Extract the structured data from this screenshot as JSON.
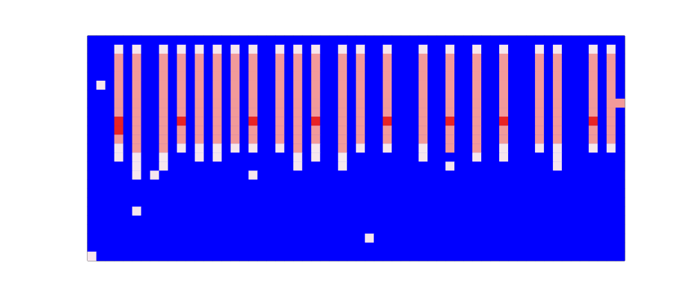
{
  "chart_data": {
    "type": "heatmap",
    "tick_labels": false,
    "grid": false,
    "zlim": [
      0,
      3
    ],
    "z": [
      [
        0,
        0,
        0,
        0,
        0,
        0,
        0,
        0,
        0,
        0,
        0,
        0,
        0,
        0,
        0,
        0,
        0,
        0,
        0,
        0,
        0,
        0,
        0,
        0,
        0,
        0,
        0,
        0,
        0,
        0,
        0,
        0,
        0,
        0,
        0,
        0,
        0,
        0,
        0,
        0,
        0,
        0,
        0,
        0,
        0,
        0,
        0,
        0,
        0,
        0,
        0,
        0,
        0,
        0,
        0,
        0,
        0,
        0,
        0,
        0
      ],
      [
        0,
        0,
        0,
        1,
        0,
        1,
        0,
        0,
        1,
        0,
        1,
        0,
        1,
        0,
        1,
        0,
        1,
        0,
        1,
        0,
        0,
        1,
        0,
        1,
        0,
        1,
        0,
        0,
        1,
        0,
        1,
        0,
        0,
        1,
        0,
        0,
        0,
        1,
        0,
        0,
        1,
        0,
        0,
        1,
        0,
        0,
        1,
        0,
        0,
        0,
        1,
        0,
        1,
        0,
        0,
        0,
        1,
        0,
        1,
        0
      ],
      [
        0,
        0,
        0,
        2,
        0,
        2,
        0,
        0,
        2,
        0,
        2,
        0,
        2,
        0,
        2,
        0,
        2,
        0,
        2,
        0,
        0,
        2,
        0,
        2,
        0,
        2,
        0,
        0,
        2,
        0,
        2,
        0,
        0,
        2,
        0,
        0,
        0,
        2,
        0,
        0,
        2,
        0,
        0,
        2,
        0,
        0,
        2,
        0,
        0,
        0,
        2,
        0,
        2,
        0,
        0,
        0,
        2,
        0,
        2,
        0
      ],
      [
        0,
        0,
        0,
        2,
        0,
        2,
        0,
        0,
        2,
        0,
        2,
        0,
        2,
        0,
        2,
        0,
        2,
        0,
        2,
        0,
        0,
        2,
        0,
        2,
        0,
        2,
        0,
        0,
        2,
        0,
        2,
        0,
        0,
        2,
        0,
        0,
        0,
        2,
        0,
        0,
        2,
        0,
        0,
        2,
        0,
        0,
        2,
        0,
        0,
        0,
        2,
        0,
        2,
        0,
        0,
        0,
        2,
        0,
        2,
        0
      ],
      [
        0,
        0,
        0,
        2,
        0,
        2,
        0,
        0,
        2,
        0,
        2,
        0,
        2,
        0,
        2,
        0,
        2,
        0,
        2,
        0,
        0,
        2,
        0,
        2,
        0,
        2,
        0,
        0,
        2,
        0,
        2,
        0,
        0,
        2,
        0,
        0,
        0,
        2,
        0,
        0,
        2,
        0,
        0,
        2,
        0,
        0,
        2,
        0,
        0,
        0,
        2,
        0,
        2,
        0,
        0,
        0,
        2,
        0,
        2,
        0
      ],
      [
        0,
        1,
        0,
        2,
        0,
        2,
        0,
        0,
        2,
        0,
        2,
        0,
        2,
        0,
        2,
        0,
        2,
        0,
        2,
        0,
        0,
        2,
        0,
        2,
        0,
        2,
        0,
        0,
        2,
        0,
        2,
        0,
        0,
        2,
        0,
        0,
        0,
        2,
        0,
        0,
        2,
        0,
        0,
        2,
        0,
        0,
        2,
        0,
        0,
        0,
        2,
        0,
        2,
        0,
        0,
        0,
        2,
        0,
        2,
        0
      ],
      [
        0,
        0,
        0,
        2,
        0,
        2,
        0,
        0,
        2,
        0,
        2,
        0,
        2,
        0,
        2,
        0,
        2,
        0,
        2,
        0,
        0,
        2,
        0,
        2,
        0,
        2,
        0,
        0,
        2,
        0,
        2,
        0,
        0,
        2,
        0,
        0,
        0,
        2,
        0,
        0,
        2,
        0,
        0,
        2,
        0,
        0,
        2,
        0,
        0,
        0,
        2,
        0,
        2,
        0,
        0,
        0,
        2,
        0,
        2,
        0
      ],
      [
        0,
        0,
        0,
        2,
        0,
        2,
        0,
        0,
        2,
        0,
        2,
        0,
        2,
        0,
        2,
        0,
        2,
        0,
        2,
        0,
        0,
        2,
        0,
        2,
        0,
        2,
        0,
        0,
        2,
        0,
        2,
        0,
        0,
        2,
        0,
        0,
        0,
        2,
        0,
        0,
        2,
        0,
        0,
        2,
        0,
        0,
        2,
        0,
        0,
        0,
        2,
        0,
        2,
        0,
        0,
        0,
        2,
        0,
        2,
        2
      ],
      [
        0,
        0,
        0,
        2,
        0,
        2,
        0,
        0,
        2,
        0,
        2,
        0,
        2,
        0,
        2,
        0,
        2,
        0,
        2,
        0,
        0,
        2,
        0,
        2,
        0,
        2,
        0,
        0,
        2,
        0,
        2,
        0,
        0,
        2,
        0,
        0,
        0,
        2,
        0,
        0,
        2,
        0,
        0,
        2,
        0,
        0,
        2,
        0,
        0,
        0,
        2,
        0,
        2,
        0,
        0,
        0,
        2,
        0,
        2,
        0
      ],
      [
        0,
        0,
        0,
        3,
        0,
        2,
        0,
        0,
        2,
        0,
        3,
        0,
        2,
        0,
        2,
        0,
        2,
        0,
        3,
        0,
        0,
        2,
        0,
        2,
        0,
        3,
        0,
        0,
        2,
        0,
        2,
        0,
        0,
        3,
        0,
        0,
        0,
        2,
        0,
        0,
        3,
        0,
        0,
        2,
        0,
        0,
        3,
        0,
        0,
        0,
        2,
        0,
        2,
        0,
        0,
        0,
        3,
        0,
        2,
        0
      ],
      [
        0,
        0,
        0,
        3,
        0,
        2,
        0,
        0,
        2,
        0,
        2,
        0,
        2,
        0,
        2,
        0,
        2,
        0,
        2,
        0,
        0,
        2,
        0,
        2,
        0,
        2,
        0,
        0,
        2,
        0,
        2,
        0,
        0,
        2,
        0,
        0,
        0,
        2,
        0,
        0,
        2,
        0,
        0,
        2,
        0,
        0,
        2,
        0,
        0,
        0,
        2,
        0,
        2,
        0,
        0,
        0,
        2,
        0,
        2,
        0
      ],
      [
        0,
        0,
        0,
        2,
        0,
        2,
        0,
        0,
        2,
        0,
        2,
        0,
        2,
        0,
        2,
        0,
        2,
        0,
        2,
        0,
        0,
        2,
        0,
        2,
        0,
        2,
        0,
        0,
        2,
        0,
        2,
        0,
        0,
        2,
        0,
        0,
        0,
        2,
        0,
        0,
        2,
        0,
        0,
        2,
        0,
        0,
        2,
        0,
        0,
        0,
        2,
        0,
        2,
        0,
        0,
        0,
        2,
        0,
        2,
        0
      ],
      [
        0,
        0,
        0,
        1,
        0,
        2,
        0,
        0,
        2,
        0,
        1,
        0,
        1,
        0,
        1,
        0,
        1,
        0,
        1,
        0,
        0,
        1,
        0,
        2,
        0,
        1,
        0,
        0,
        2,
        0,
        1,
        0,
        0,
        1,
        0,
        0,
        0,
        1,
        0,
        0,
        2,
        0,
        0,
        2,
        0,
        0,
        1,
        0,
        0,
        0,
        1,
        0,
        1,
        0,
        0,
        0,
        1,
        0,
        1,
        0
      ],
      [
        0,
        0,
        0,
        1,
        0,
        1,
        0,
        0,
        1,
        0,
        0,
        0,
        1,
        0,
        1,
        0,
        0,
        0,
        0,
        0,
        0,
        0,
        0,
        1,
        0,
        1,
        0,
        0,
        1,
        0,
        0,
        0,
        0,
        0,
        0,
        0,
        0,
        1,
        0,
        0,
        0,
        0,
        0,
        1,
        0,
        0,
        1,
        0,
        0,
        0,
        0,
        0,
        1,
        0,
        0,
        0,
        0,
        0,
        0,
        0
      ],
      [
        0,
        0,
        0,
        0,
        0,
        1,
        0,
        0,
        1,
        0,
        0,
        0,
        0,
        0,
        0,
        0,
        0,
        0,
        0,
        0,
        0,
        0,
        0,
        1,
        0,
        0,
        0,
        0,
        1,
        0,
        0,
        0,
        0,
        0,
        0,
        0,
        0,
        0,
        0,
        0,
        1,
        0,
        0,
        0,
        0,
        0,
        0,
        0,
        0,
        0,
        0,
        0,
        1,
        0,
        0,
        0,
        0,
        0,
        0,
        0
      ],
      [
        0,
        0,
        0,
        0,
        0,
        1,
        0,
        1,
        0,
        0,
        0,
        0,
        0,
        0,
        0,
        0,
        0,
        0,
        1,
        0,
        0,
        0,
        0,
        0,
        0,
        0,
        0,
        0,
        0,
        0,
        0,
        0,
        0,
        0,
        0,
        0,
        0,
        0,
        0,
        0,
        0,
        0,
        0,
        0,
        0,
        0,
        0,
        0,
        0,
        0,
        0,
        0,
        0,
        0,
        0,
        0,
        0,
        0,
        0,
        0
      ],
      [
        0,
        0,
        0,
        0,
        0,
        0,
        0,
        0,
        0,
        0,
        0,
        0,
        0,
        0,
        0,
        0,
        0,
        0,
        0,
        0,
        0,
        0,
        0,
        0,
        0,
        0,
        0,
        0,
        0,
        0,
        0,
        0,
        0,
        0,
        0,
        0,
        0,
        0,
        0,
        0,
        0,
        0,
        0,
        0,
        0,
        0,
        0,
        0,
        0,
        0,
        0,
        0,
        0,
        0,
        0,
        0,
        0,
        0,
        0,
        0
      ],
      [
        0,
        0,
        0,
        0,
        0,
        0,
        0,
        0,
        0,
        0,
        0,
        0,
        0,
        0,
        0,
        0,
        0,
        0,
        0,
        0,
        0,
        0,
        0,
        0,
        0,
        0,
        0,
        0,
        0,
        0,
        0,
        0,
        0,
        0,
        0,
        0,
        0,
        0,
        0,
        0,
        0,
        0,
        0,
        0,
        0,
        0,
        0,
        0,
        0,
        0,
        0,
        0,
        0,
        0,
        0,
        0,
        0,
        0,
        0,
        0
      ],
      [
        0,
        0,
        0,
        0,
        0,
        0,
        0,
        0,
        0,
        0,
        0,
        0,
        0,
        0,
        0,
        0,
        0,
        0,
        0,
        0,
        0,
        0,
        0,
        0,
        0,
        0,
        0,
        0,
        0,
        0,
        0,
        0,
        0,
        0,
        0,
        0,
        0,
        0,
        0,
        0,
        0,
        0,
        0,
        0,
        0,
        0,
        0,
        0,
        0,
        0,
        0,
        0,
        0,
        0,
        0,
        0,
        0,
        0,
        0,
        0
      ],
      [
        0,
        0,
        0,
        0,
        0,
        1,
        0,
        0,
        0,
        0,
        0,
        0,
        0,
        0,
        0,
        0,
        0,
        0,
        0,
        0,
        0,
        0,
        0,
        0,
        0,
        0,
        0,
        0,
        0,
        0,
        0,
        0,
        0,
        0,
        0,
        0,
        0,
        0,
        0,
        0,
        0,
        0,
        0,
        0,
        0,
        0,
        0,
        0,
        0,
        0,
        0,
        0,
        0,
        0,
        0,
        0,
        0,
        0,
        0,
        0
      ],
      [
        0,
        0,
        0,
        0,
        0,
        0,
        0,
        0,
        0,
        0,
        0,
        0,
        0,
        0,
        0,
        0,
        0,
        0,
        0,
        0,
        0,
        0,
        0,
        0,
        0,
        0,
        0,
        0,
        0,
        0,
        0,
        0,
        0,
        0,
        0,
        0,
        0,
        0,
        0,
        0,
        0,
        0,
        0,
        0,
        0,
        0,
        0,
        0,
        0,
        0,
        0,
        0,
        0,
        0,
        0,
        0,
        0,
        0,
        0,
        0
      ],
      [
        0,
        0,
        0,
        0,
        0,
        0,
        0,
        0,
        0,
        0,
        0,
        0,
        0,
        0,
        0,
        0,
        0,
        0,
        0,
        0,
        0,
        0,
        0,
        0,
        0,
        0,
        0,
        0,
        0,
        0,
        0,
        0,
        0,
        0,
        0,
        0,
        0,
        0,
        0,
        0,
        0,
        0,
        0,
        0,
        0,
        0,
        0,
        0,
        0,
        0,
        0,
        0,
        0,
        0,
        0,
        0,
        0,
        0,
        0,
        0
      ],
      [
        0,
        0,
        0,
        0,
        0,
        0,
        0,
        0,
        0,
        0,
        0,
        0,
        0,
        0,
        0,
        0,
        0,
        0,
        0,
        0,
        0,
        0,
        0,
        0,
        0,
        0,
        0,
        0,
        0,
        0,
        0,
        1,
        0,
        0,
        0,
        0,
        0,
        0,
        0,
        0,
        0,
        0,
        0,
        0,
        0,
        0,
        0,
        0,
        0,
        0,
        0,
        0,
        0,
        0,
        0,
        0,
        0,
        0,
        0,
        0
      ],
      [
        0,
        0,
        0,
        0,
        0,
        0,
        0,
        0,
        0,
        0,
        0,
        0,
        0,
        0,
        0,
        0,
        0,
        0,
        0,
        0,
        0,
        0,
        0,
        0,
        0,
        0,
        0,
        0,
        0,
        0,
        0,
        0,
        0,
        0,
        0,
        0,
        0,
        0,
        0,
        0,
        0,
        0,
        0,
        0,
        0,
        0,
        0,
        0,
        0,
        0,
        0,
        0,
        0,
        0,
        0,
        0,
        0,
        0,
        0,
        0
      ],
      [
        1,
        0,
        0,
        0,
        0,
        0,
        0,
        0,
        0,
        0,
        0,
        0,
        0,
        0,
        0,
        0,
        0,
        0,
        0,
        0,
        0,
        0,
        0,
        0,
        0,
        0,
        0,
        0,
        0,
        0,
        0,
        0,
        0,
        0,
        0,
        0,
        0,
        0,
        0,
        0,
        0,
        0,
        0,
        0,
        0,
        0,
        0,
        0,
        0,
        0,
        0,
        0,
        0,
        0,
        0,
        0,
        0,
        0,
        0,
        0
      ]
    ]
  }
}
